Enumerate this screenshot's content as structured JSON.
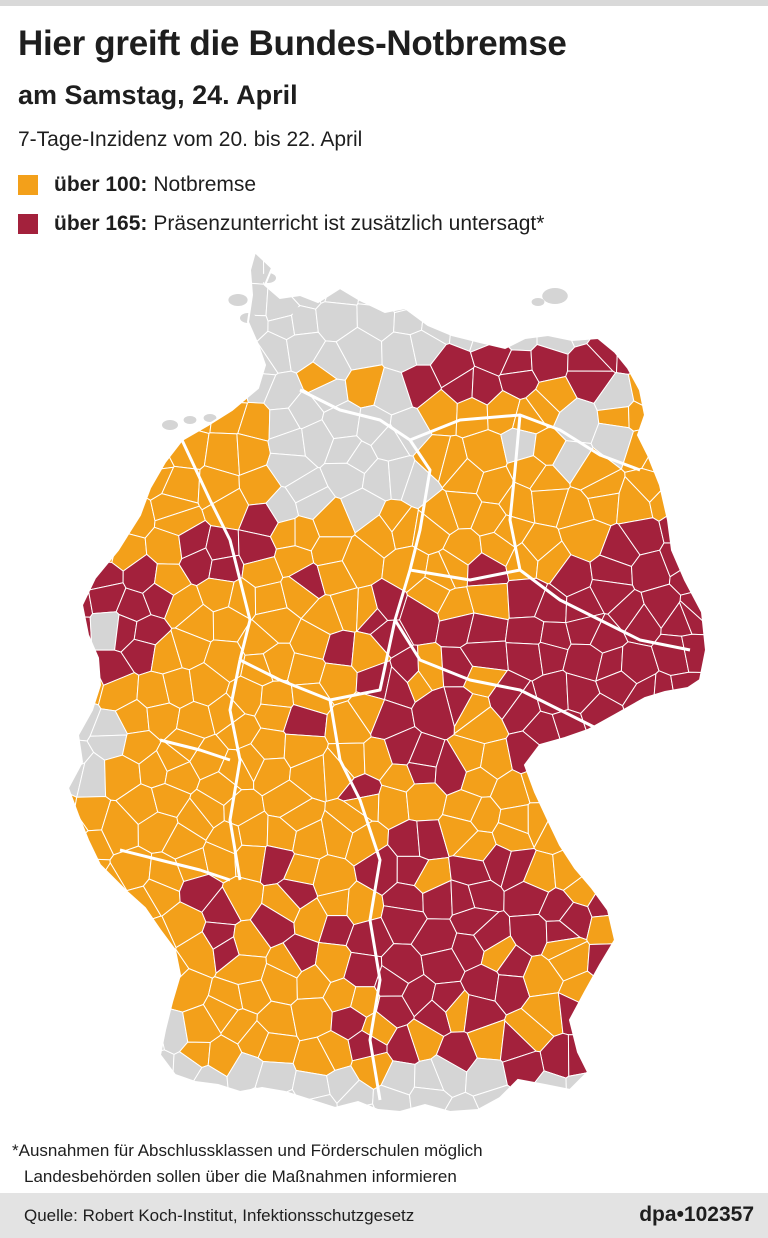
{
  "header": {
    "title": "Hier greift die Bundes-Notbremse",
    "subtitle": "am Samstag, 24. April",
    "incidence_note": "7-Tage-Inzidenz vom 20. bis 22. April"
  },
  "legend": [
    {
      "threshold": "über 100:",
      "label": "Notbremse",
      "color": "#f3a01a"
    },
    {
      "threshold": "über 165:",
      "label": "Präsenzunterricht ist zusätzlich untersagt*",
      "color": "#a3213c"
    }
  ],
  "map": {
    "colors": {
      "no_measure": "#d5d5d5",
      "over_100": "#f3a01a",
      "over_165": "#a3213c",
      "border": "#ffffff"
    }
  },
  "footer": {
    "footnote_1": "*Ausnahmen für Abschlussklassen und Förderschulen möglich",
    "footnote_2": "Landesbehörden sollen über die Maßnahmen informieren",
    "source": "Quelle: Robert Koch-Institut, Infektionsschutzgesetz",
    "credit": "dpa•102357"
  }
}
